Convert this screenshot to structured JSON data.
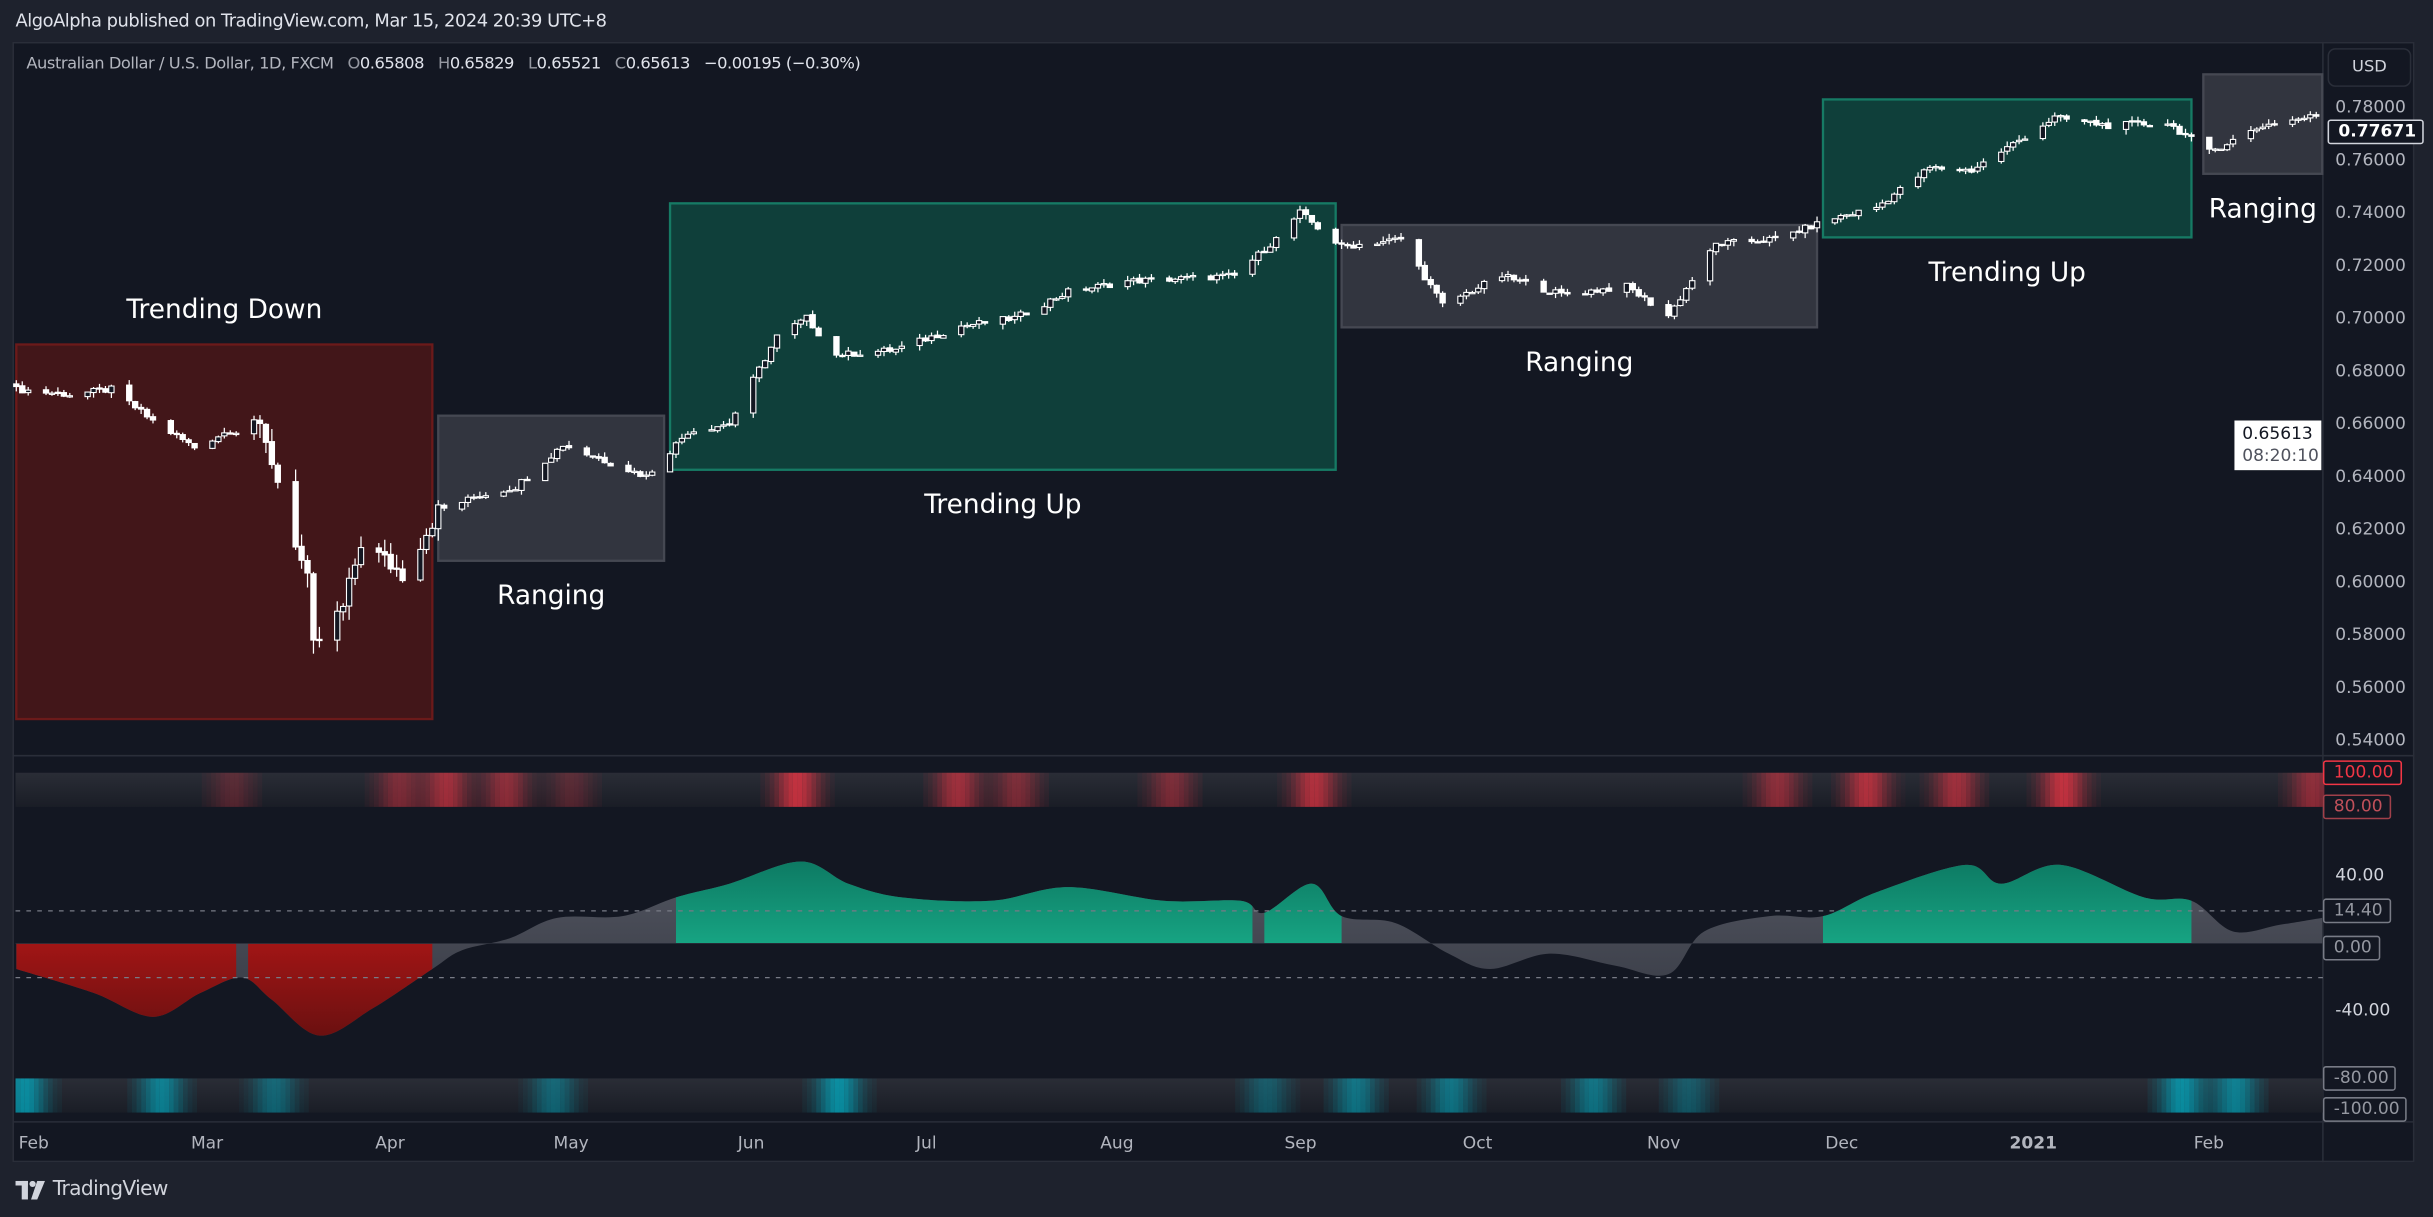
{
  "header": {
    "published": "AlgoAlpha published on TradingView.com, Mar 15, 2024 20:39 UTC+8"
  },
  "legend": {
    "symbol": "Australian Dollar / U.S. Dollar, 1D, FXCM",
    "open_label": "O",
    "open": "0.65808",
    "high_label": "H",
    "high": "0.65829",
    "low_label": "L",
    "low": "0.65521",
    "close_label": "C",
    "close": "0.65613",
    "change": "−0.00195 (−0.30%)"
  },
  "currency_button": "USD",
  "price_axis": {
    "ticks": [
      "0.78000",
      "0.76000",
      "0.74000",
      "0.72000",
      "0.70000",
      "0.68000",
      "0.66000",
      "0.64000",
      "0.62000",
      "0.60000",
      "0.58000",
      "0.56000",
      "0.54000"
    ],
    "last_price_tag": "0.77671",
    "crosshair_price": "0.65613",
    "crosshair_countdown": "08:20:10"
  },
  "oscillator_axis": {
    "ob_extreme": "100.00",
    "ob": "80.00",
    "upper": "40.00",
    "current": "14.40",
    "zero": "0.00",
    "lower": "-40.00",
    "os": "-80.00",
    "os_extreme": "-100.00"
  },
  "time_axis": [
    "Feb",
    "Mar",
    "Apr",
    "May",
    "Jun",
    "Jul",
    "Aug",
    "Sep",
    "Oct",
    "Nov",
    "Dec",
    "2021",
    "Feb"
  ],
  "footer": {
    "brand": "TradingView"
  },
  "colors": {
    "background": "#131722",
    "trend_down": "#b71c1c",
    "trend_up": "#089981",
    "ranging": "#787b86",
    "overbought": "#f23645",
    "oversold": "#00bcd4"
  },
  "regimes": [
    {
      "label": "Trending Down",
      "type": "down",
      "start": "2020-01-29",
      "end": "2020-04-08",
      "top": 0.69,
      "bottom": 0.548,
      "label_side": "above"
    },
    {
      "label": "Ranging",
      "type": "range",
      "start": "2020-04-09",
      "end": "2020-05-17",
      "top": 0.663,
      "bottom": 0.608,
      "label_side": "below"
    },
    {
      "label": "Trending Up",
      "type": "up",
      "start": "2020-05-18",
      "end": "2020-09-07",
      "top": 0.7435,
      "bottom": 0.6425,
      "label_side": "below"
    },
    {
      "label": "Ranging",
      "type": "range",
      "start": "2020-09-08",
      "end": "2020-11-27",
      "top": 0.7353,
      "bottom": 0.6965,
      "label_side": "below"
    },
    {
      "label": "Trending Up",
      "type": "up",
      "start": "2020-11-28",
      "end": "2021-01-29",
      "top": 0.7829,
      "bottom": 0.7306,
      "label_side": "below"
    },
    {
      "label": "Ranging",
      "type": "range",
      "start": "2021-01-31",
      "end": "2021-02-20",
      "top": 0.7924,
      "bottom": 0.7547,
      "label_side": "below"
    }
  ],
  "chart_data": {
    "type": "candlestick",
    "approx_closes": [
      [
        "2020-01-29",
        0.673
      ],
      [
        "2020-02-07",
        0.671
      ],
      [
        "2020-02-14",
        0.673
      ],
      [
        "2020-02-21",
        0.661
      ],
      [
        "2020-02-28",
        0.651
      ],
      [
        "2020-03-09",
        0.662
      ],
      [
        "2020-03-12",
        0.646
      ],
      [
        "2020-03-18",
        0.6
      ],
      [
        "2020-03-19",
        0.575
      ],
      [
        "2020-03-24",
        0.59
      ],
      [
        "2020-03-27",
        0.615
      ],
      [
        "2020-04-03",
        0.603
      ],
      [
        "2020-04-09",
        0.627
      ],
      [
        "2020-04-15",
        0.632
      ],
      [
        "2020-04-22",
        0.636
      ],
      [
        "2020-04-30",
        0.652
      ],
      [
        "2020-05-07",
        0.646
      ],
      [
        "2020-05-14",
        0.64
      ],
      [
        "2020-05-21",
        0.657
      ],
      [
        "2020-05-28",
        0.66
      ],
      [
        "2020-06-05",
        0.693
      ],
      [
        "2020-06-10",
        0.7
      ],
      [
        "2020-06-15",
        0.686
      ],
      [
        "2020-06-25",
        0.688
      ],
      [
        "2020-07-06",
        0.697
      ],
      [
        "2020-07-15",
        0.7
      ],
      [
        "2020-07-24",
        0.71
      ],
      [
        "2020-08-03",
        0.714
      ],
      [
        "2020-08-12",
        0.715
      ],
      [
        "2020-08-21",
        0.716
      ],
      [
        "2020-08-28",
        0.73
      ],
      [
        "2020-09-01",
        0.74
      ],
      [
        "2020-09-08",
        0.727
      ],
      [
        "2020-09-18",
        0.73
      ],
      [
        "2020-09-25",
        0.705
      ],
      [
        "2020-10-05",
        0.716
      ],
      [
        "2020-10-15",
        0.709
      ],
      [
        "2020-10-26",
        0.712
      ],
      [
        "2020-11-02",
        0.701
      ],
      [
        "2020-11-10",
        0.728
      ],
      [
        "2020-11-20",
        0.73
      ],
      [
        "2020-11-30",
        0.738
      ],
      [
        "2020-12-07",
        0.742
      ],
      [
        "2020-12-16",
        0.757
      ],
      [
        "2020-12-23",
        0.756
      ],
      [
        "2021-01-06",
        0.776
      ],
      [
        "2021-01-15",
        0.773
      ],
      [
        "2021-01-25",
        0.774
      ],
      [
        "2021-02-01",
        0.763
      ],
      [
        "2021-02-10",
        0.773
      ],
      [
        "2021-02-19",
        0.7767
      ]
    ],
    "price_range": [
      0.53,
      0.79
    ],
    "oscillator": {
      "range": [
        -100,
        100
      ],
      "levels": [
        100,
        80,
        40,
        0,
        -40,
        -80,
        -100
      ],
      "values": [
        [
          "2020-01-29",
          -15
        ],
        [
          "2020-02-11",
          -29
        ],
        [
          "2020-02-21",
          -43
        ],
        [
          "2020-02-29",
          -29
        ],
        [
          "2020-03-07",
          -20
        ],
        [
          "2020-03-12",
          -33
        ],
        [
          "2020-03-20",
          -54
        ],
        [
          "2020-03-29",
          -38
        ],
        [
          "2020-04-08",
          -15
        ],
        [
          "2020-04-13",
          -4
        ],
        [
          "2020-04-21",
          3
        ],
        [
          "2020-04-29",
          15
        ],
        [
          "2020-05-10",
          16
        ],
        [
          "2020-05-19",
          27
        ],
        [
          "2020-05-28",
          35
        ],
        [
          "2020-06-09",
          48
        ],
        [
          "2020-06-17",
          35
        ],
        [
          "2020-06-26",
          27
        ],
        [
          "2020-07-11",
          25
        ],
        [
          "2020-07-24",
          33
        ],
        [
          "2020-08-09",
          25
        ],
        [
          "2020-08-22",
          25
        ],
        [
          "2020-08-26",
          18
        ],
        [
          "2020-09-03",
          35
        ],
        [
          "2020-09-08",
          16
        ],
        [
          "2020-09-17",
          12
        ],
        [
          "2020-09-26",
          -6
        ],
        [
          "2020-10-03",
          -15
        ],
        [
          "2020-10-13",
          -6
        ],
        [
          "2020-10-24",
          -13
        ],
        [
          "2020-11-02",
          -18
        ],
        [
          "2020-11-08",
          7
        ],
        [
          "2020-11-19",
          16
        ],
        [
          "2020-11-28",
          16
        ],
        [
          "2020-12-07",
          30
        ],
        [
          "2020-12-22",
          46
        ],
        [
          "2020-12-28",
          35
        ],
        [
          "2021-01-07",
          46
        ],
        [
          "2021-01-21",
          27
        ],
        [
          "2021-01-29",
          25
        ],
        [
          "2021-02-05",
          7
        ],
        [
          "2021-02-13",
          11
        ],
        [
          "2021-02-20",
          15
        ]
      ],
      "regime_fill": [
        [
          "2020-01-29",
          "2020-03-06",
          "down"
        ],
        [
          "2020-03-08",
          "2020-04-08",
          "down"
        ],
        [
          "2020-05-19",
          "2020-08-24",
          "up"
        ],
        [
          "2020-08-26",
          "2020-09-08",
          "up"
        ],
        [
          "2020-11-28",
          "2021-01-29",
          "up"
        ]
      ],
      "overbought_heat": [
        [
          "2020-03-05",
          0.3
        ],
        [
          "2020-04-02",
          0.5
        ],
        [
          "2020-04-10",
          0.7
        ],
        [
          "2020-04-20",
          0.6
        ],
        [
          "2020-05-01",
          0.3
        ],
        [
          "2020-06-08",
          0.9
        ],
        [
          "2020-07-05",
          0.7
        ],
        [
          "2020-07-15",
          0.5
        ],
        [
          "2020-08-10",
          0.5
        ],
        [
          "2020-09-03",
          0.8
        ],
        [
          "2020-11-20",
          0.6
        ],
        [
          "2020-12-05",
          0.8
        ],
        [
          "2020-12-20",
          0.7
        ],
        [
          "2021-01-07",
          0.9
        ],
        [
          "2021-02-18",
          0.6
        ]
      ],
      "oversold_heat": [
        [
          "2020-01-30",
          0.8
        ],
        [
          "2020-02-22",
          0.7
        ],
        [
          "2020-03-12",
          0.5
        ],
        [
          "2020-04-28",
          0.5
        ],
        [
          "2020-06-15",
          0.8
        ],
        [
          "2020-08-26",
          0.4
        ],
        [
          "2020-09-10",
          0.6
        ],
        [
          "2020-09-26",
          0.6
        ],
        [
          "2020-10-20",
          0.6
        ],
        [
          "2020-11-05",
          0.4
        ],
        [
          "2021-01-27",
          0.8
        ],
        [
          "2021-02-05",
          0.7
        ]
      ]
    }
  }
}
